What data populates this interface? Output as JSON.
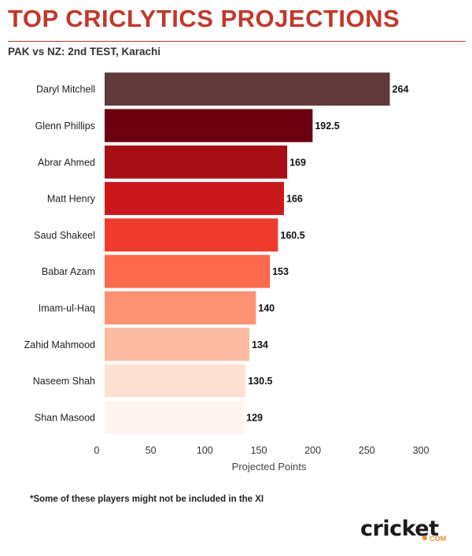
{
  "header": {
    "title": "TOP CRICLYTICS PROJECTIONS",
    "subtitle": "PAK vs NZ: 2nd TEST, Karachi"
  },
  "footnote": "*Some of these players might not be included in the XI",
  "logo": {
    "word": "cricket",
    "suffix": "COM"
  },
  "colors": {
    "title": "#c0392b",
    "bars": [
      "#603a3b",
      "#6d0010",
      "#a50f15",
      "#cb181d",
      "#ef3b2c",
      "#fb6a4a",
      "#fc9272",
      "#fcbba1",
      "#fee0d2",
      "#fff5f0"
    ]
  },
  "chart_data": {
    "type": "bar",
    "orientation": "horizontal",
    "categories": [
      "Daryl Mitchell",
      "Glenn Phillips",
      "Abrar Ahmed",
      "Matt Henry",
      "Saud Shakeel",
      "Babar Azam",
      "Imam-ul-Haq",
      "Zahid Mahmood",
      "Naseem Shah",
      "Shan Masood"
    ],
    "values": [
      264,
      192.5,
      169,
      166,
      160.5,
      153,
      140,
      134,
      130.5,
      129
    ],
    "value_labels": [
      "264",
      "192.5",
      "169",
      "166",
      "160.5",
      "153",
      "140",
      "134",
      "130.5",
      "129"
    ],
    "xlabel": "Projected Points",
    "xlim": [
      0,
      300
    ],
    "xticks": [
      0,
      50,
      100,
      150,
      200,
      250,
      300
    ],
    "grid": false,
    "legend": "none"
  }
}
